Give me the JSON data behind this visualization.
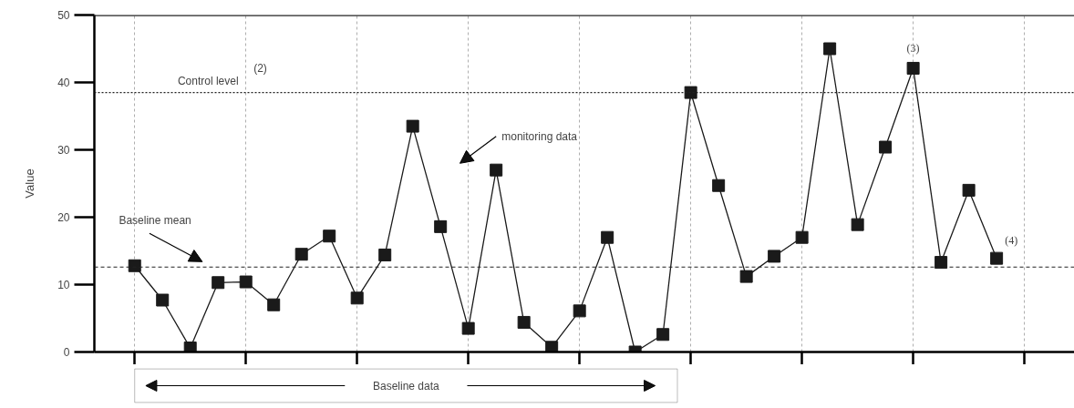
{
  "chart_data": {
    "type": "line",
    "ylabel": "Value",
    "categories": [
      null,
      null,
      null,
      null,
      null,
      null,
      null,
      null,
      null,
      null,
      null,
      null,
      null,
      null,
      null,
      null,
      null,
      null,
      null,
      null,
      null,
      null,
      null,
      null,
      null,
      null,
      null,
      null,
      null,
      null,
      null,
      null
    ],
    "series": [
      {
        "color": "#1a1a1a",
        "values": [
          12.8,
          7.7,
          0.6,
          10.3,
          10.4,
          7.0,
          14.5,
          17.2,
          8.0,
          14.4,
          33.5,
          18.6,
          3.5,
          27.0,
          4.4,
          0.7,
          6.1,
          17.0,
          0,
          2.6,
          38.5,
          24.7,
          11.2,
          14.2,
          17.0,
          45.0,
          18.9,
          30.4,
          42.1,
          13.3,
          24.0,
          13.9
        ]
      }
    ],
    "ylim": [
      0,
      50
    ],
    "yticks": [
      0,
      10,
      20,
      30,
      40,
      50
    ],
    "tick_labels": "y",
    "grid": "x",
    "marker": "square",
    "line_style": "solid",
    "ref_lines": [
      {
        "axis": "y",
        "value": 12.6,
        "label": "Baseline mean",
        "line_style": "dashed",
        "color": "#222222"
      },
      {
        "axis": "y",
        "value": 38.5,
        "label": "Control level",
        "line_style": "dotted",
        "color": "#222222"
      }
    ],
    "annotations": [
      {
        "text": "(2)",
        "y": 38.5
      },
      "monitoring data",
      {
        "text": "(3)",
        "y": 42.1
      },
      "(4)",
      "Baseline data"
    ]
  }
}
